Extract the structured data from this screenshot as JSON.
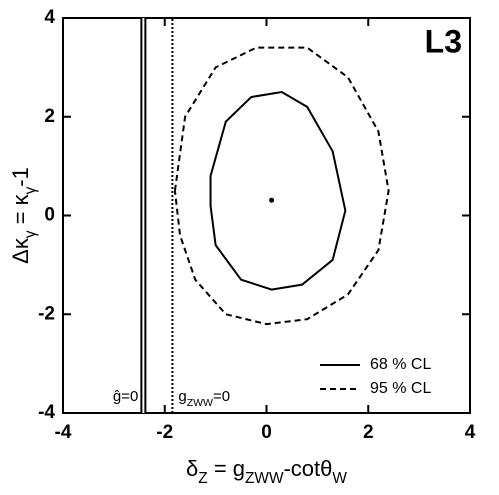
{
  "chart_data": {
    "type": "line",
    "title": "L3",
    "x_label_parts": [
      "δ",
      "Z",
      " = g",
      "ZWW",
      "-cotθ",
      "W"
    ],
    "y_label_parts": [
      "Δκ",
      "γ",
      " = κ",
      "γ",
      "-1"
    ],
    "xlim": [
      -4,
      4
    ],
    "ylim": [
      -4,
      4
    ],
    "xticks": [
      -4,
      -2,
      0,
      2,
      4
    ],
    "yticks": [
      -4,
      -2,
      0,
      2,
      4
    ],
    "legend": "lower right",
    "series": [
      {
        "name": "68 % CL",
        "color": "#000000",
        "dash": "solid",
        "x": [
          -1.1,
          -0.8,
          -0.3,
          0.3,
          0.8,
          1.3,
          1.55,
          1.3,
          0.7,
          0.1,
          -0.5,
          -1.0,
          -1.1,
          -1.1
        ],
        "values": [
          0.8,
          1.9,
          2.4,
          2.5,
          2.2,
          1.3,
          0.1,
          -0.9,
          -1.4,
          -1.5,
          -1.3,
          -0.6,
          0.2,
          0.8
        ]
      },
      {
        "name": "95 % CL",
        "color": "#000000",
        "dash": "dashed",
        "x": [
          -1.8,
          -1.6,
          -1.0,
          -0.2,
          0.8,
          1.6,
          2.2,
          2.4,
          2.2,
          1.6,
          0.8,
          0.0,
          -0.8,
          -1.4,
          -1.7,
          -1.8
        ],
        "values": [
          0.5,
          2.0,
          3.0,
          3.4,
          3.4,
          2.8,
          1.7,
          0.5,
          -0.7,
          -1.6,
          -2.1,
          -2.2,
          -2.0,
          -1.3,
          -0.4,
          0.5
        ]
      },
      {
        "label_parts": [
          "ĝ=0"
        ],
        "color": "#000000",
        "dash": "double",
        "x": [
          -2.42,
          -2.42
        ],
        "values": [
          -4,
          4
        ]
      },
      {
        "label_parts": [
          "g",
          "ZWW",
          "=0"
        ],
        "color": "#000000",
        "dash": "dotted",
        "x": [
          -1.85,
          -1.85
        ],
        "values": [
          -4,
          4
        ]
      },
      {
        "color": "#000000",
        "dash": "point",
        "x": [
          0.1
        ],
        "values": [
          0.31
        ]
      }
    ]
  }
}
